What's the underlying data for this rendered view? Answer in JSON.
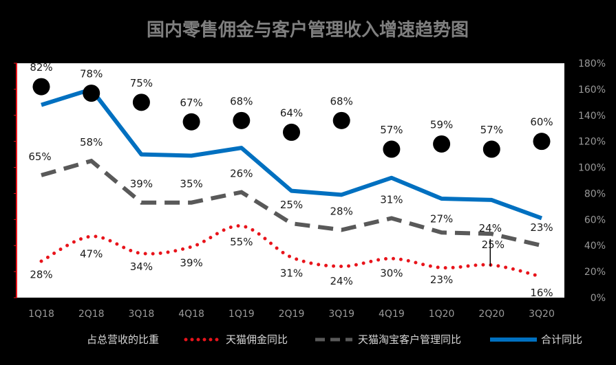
{
  "chart_data": {
    "type": "line",
    "title": "国内零售佣金与客户管理收入增速趋势图",
    "categories": [
      "1Q18",
      "2Q18",
      "3Q18",
      "4Q18",
      "1Q19",
      "2Q19",
      "3Q19",
      "4Q19",
      "1Q20",
      "2Q20",
      "3Q20"
    ],
    "ylim": [
      0,
      180
    ],
    "y_ticks": [
      "0%",
      "20%",
      "40%",
      "60%",
      "80%",
      "100%",
      "120%",
      "140%",
      "160%",
      "180%"
    ],
    "legend_position": "bottom",
    "series": [
      {
        "name": "占总营收的比重",
        "style": "markers",
        "color": "#000000",
        "values": [
          82,
          78,
          75,
          67,
          68,
          64,
          68,
          57,
          59,
          57,
          60
        ],
        "labels": [
          "82%",
          "78%",
          "75%",
          "67%",
          "68%",
          "64%",
          "68%",
          "57%",
          "59%",
          "57%",
          "60%"
        ]
      },
      {
        "name": "天猫佣金同比",
        "style": "dotted",
        "color": "#e8141b",
        "values": [
          28,
          47,
          34,
          39,
          55,
          31,
          24,
          30,
          23,
          25,
          16
        ],
        "labels": [
          "28%",
          "47%",
          "34%",
          "39%",
          "55%",
          "31%",
          "24%",
          "30%",
          "23%",
          "25%",
          "16%"
        ]
      },
      {
        "name": "天猫淘宝客户管理同比",
        "style": "dashed",
        "color": "#595959",
        "values": [
          65,
          58,
          39,
          35,
          26,
          25,
          28,
          31,
          27,
          24,
          23
        ],
        "labels": [
          "65%",
          "58%",
          "39%",
          "35%",
          "26%",
          "25%",
          "28%",
          "31%",
          "27%",
          "24%",
          "23%"
        ]
      },
      {
        "name": "合计同比",
        "style": "solid",
        "color": "#0070c0",
        "values": [
          148,
          160,
          110,
          109,
          115,
          82,
          79,
          92,
          76,
          75,
          61
        ]
      }
    ]
  }
}
